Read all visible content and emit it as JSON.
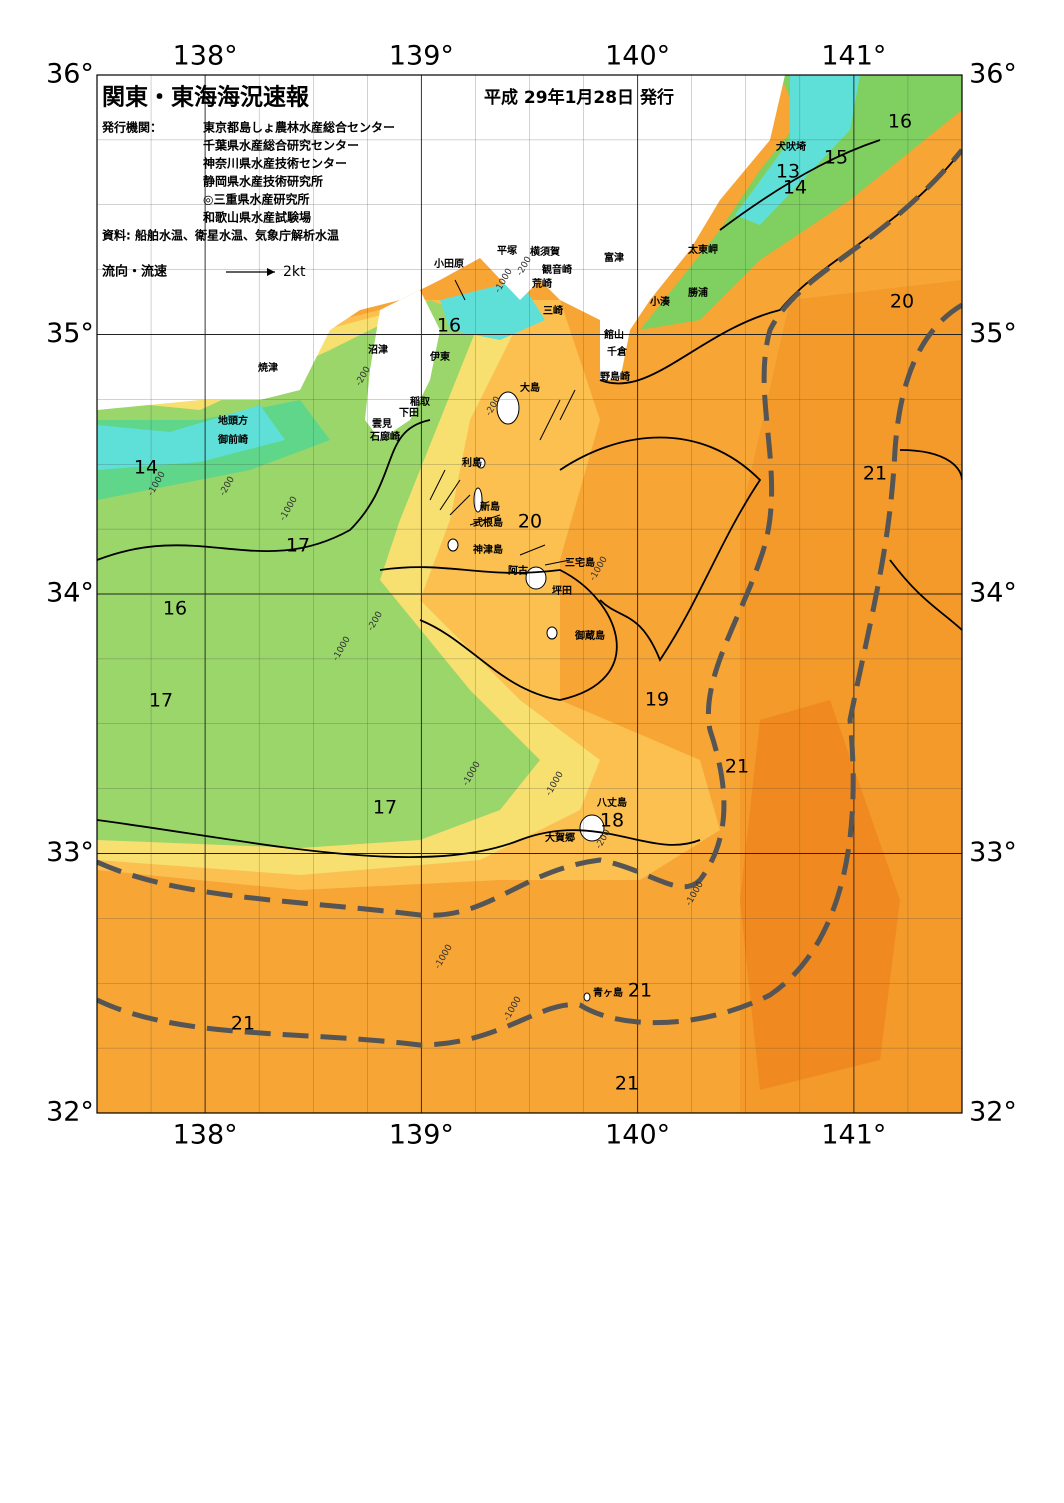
{
  "header": {
    "title": "関東・東海海況速報",
    "issue_date": "平成 29年1月28日 発行",
    "issuer_label": "発行機関：",
    "issuers": [
      "東京都島しょ農林水産総合センター",
      "千葉県水産総合研究センター",
      "神奈川県水産技術センター",
      "静岡県水産技術研究所",
      "◎三重県水産研究所",
      "和歌山県水産試験場"
    ],
    "source": "資料: 船舶水温、衛星水温、気象庁解析水温",
    "legend_label": "流向・流速",
    "legend_scale": "2kt"
  },
  "map": {
    "lonlim": [
      137.5,
      141.5
    ],
    "latlim": [
      32,
      36
    ],
    "lon_ticks": [
      {
        "value": 138,
        "label": "138°"
      },
      {
        "value": 139,
        "label": "139°"
      },
      {
        "value": 140,
        "label": "140°"
      },
      {
        "value": 141,
        "label": "141°"
      }
    ],
    "lat_ticks": [
      {
        "value": 36,
        "label": "36°"
      },
      {
        "value": 35,
        "label": "35°"
      },
      {
        "value": 34,
        "label": "34°"
      },
      {
        "value": 33,
        "label": "33°"
      },
      {
        "value": 32,
        "label": "32°"
      }
    ],
    "place_names": [
      "犬吠埼",
      "太東岬",
      "勝浦",
      "小湊",
      "富津",
      "横須賀",
      "平塚",
      "観音崎",
      "荒崎",
      "三崎",
      "小田原",
      "館山",
      "千倉",
      "野島崎",
      "沼津",
      "伊東",
      "焼津",
      "稲取",
      "下田",
      "雲見",
      "石廊崎",
      "地頭方",
      "御前崎",
      "大島",
      "利島",
      "新島",
      "式根島",
      "神津島",
      "三宅島",
      "阿古",
      "坪田",
      "御蔵島",
      "八丈島",
      "大賀郷",
      "青ヶ島"
    ],
    "temperature_labels": [
      16,
      15,
      13,
      14,
      20,
      16,
      14,
      21,
      20,
      17,
      16,
      17,
      19,
      21,
      17,
      18,
      21,
      21,
      21
    ],
    "depth_labels": [
      -200,
      -1000,
      -200,
      -200,
      -200,
      -1000,
      -1000,
      -200,
      -1000,
      -1000,
      -1000,
      -1000,
      -1000,
      -1000,
      -200,
      -1000
    ]
  }
}
